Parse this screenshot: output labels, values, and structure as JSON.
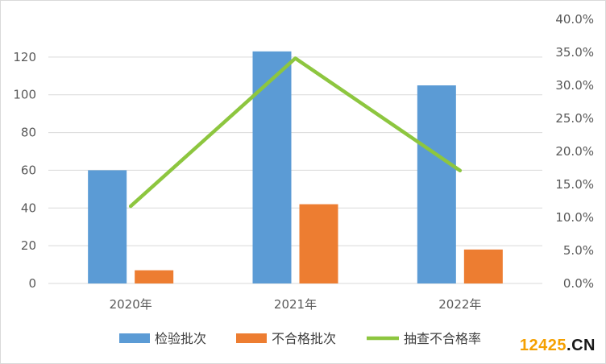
{
  "chart_data": {
    "type": "bar",
    "categories": [
      "2020年",
      "2021年",
      "2022年"
    ],
    "series": [
      {
        "name": "检验批次",
        "kind": "bar",
        "axis": "left",
        "values": [
          60,
          123,
          105
        ],
        "color": "#5b9bd5"
      },
      {
        "name": "不合格批次",
        "kind": "bar",
        "axis": "left",
        "values": [
          7,
          42,
          18
        ],
        "color": "#ed7d31"
      },
      {
        "name": "抽查不合格率",
        "kind": "line",
        "axis": "right",
        "values": [
          11.7,
          34.1,
          17.1
        ],
        "color": "#8dc63f"
      }
    ],
    "y_left": {
      "min": 0,
      "max": 140,
      "ticks": [
        0,
        20,
        40,
        60,
        80,
        100,
        120
      ]
    },
    "y_right": {
      "min": 0,
      "max": 40,
      "ticks": [
        "0.0%",
        "5.0%",
        "10.0%",
        "15.0%",
        "20.0%",
        "25.0%",
        "30.0%",
        "35.0%",
        "40.0%"
      ]
    },
    "grid": true,
    "legend_position": "bottom",
    "title": "",
    "xlabel": "",
    "ylabel": ""
  },
  "watermark": {
    "prefix": "12425",
    "suffix": ".CN",
    "prefix_color": "#f5a000",
    "suffix_color": "#1a1a1a"
  }
}
